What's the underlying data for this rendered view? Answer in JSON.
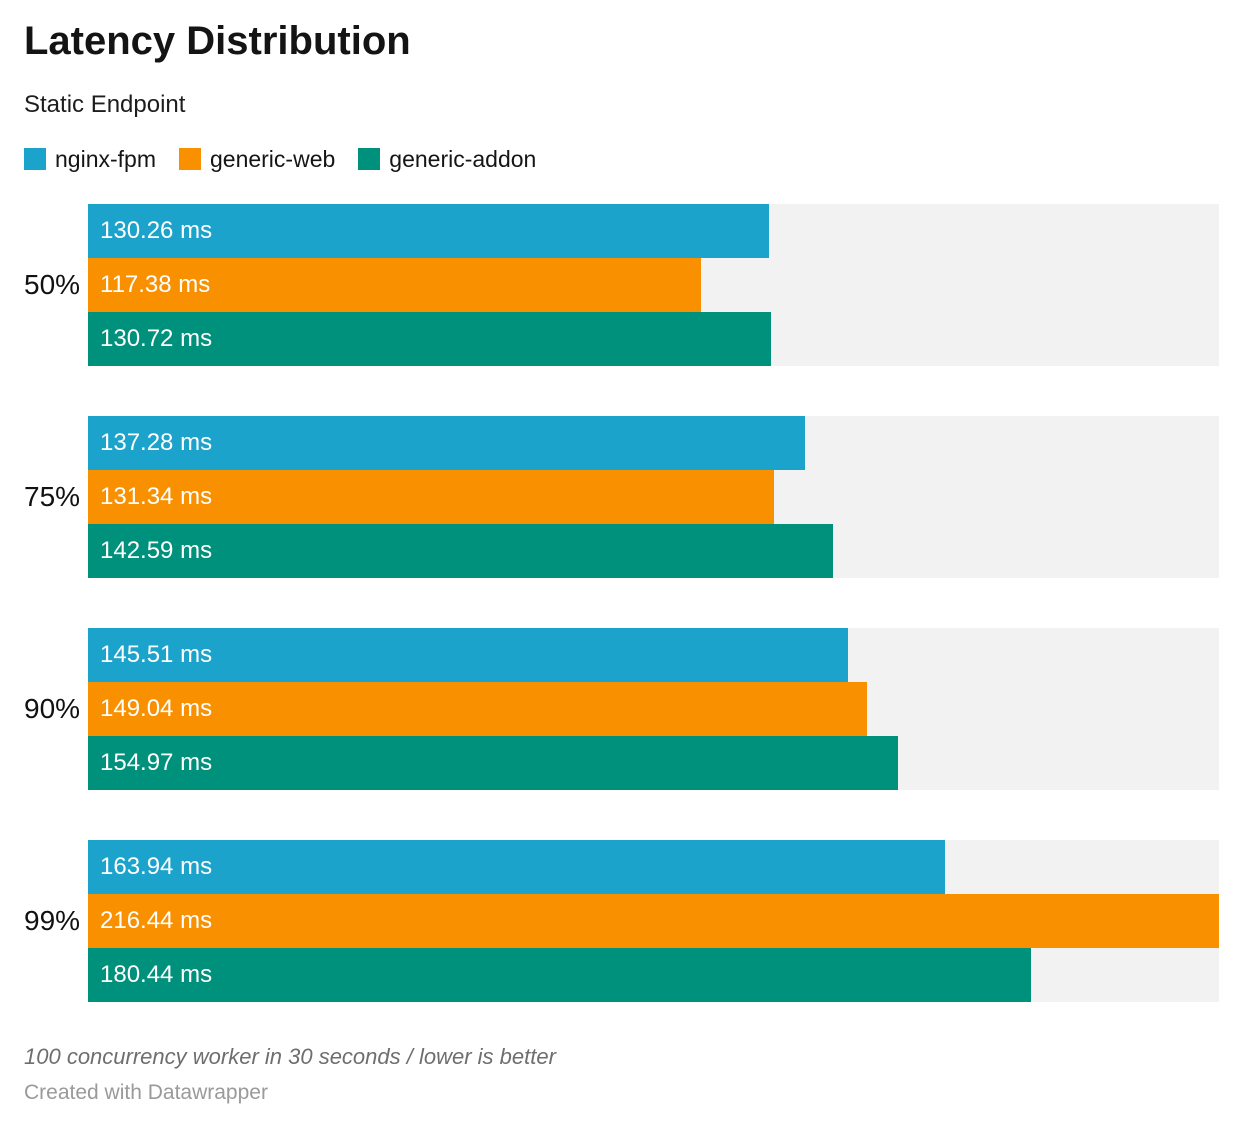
{
  "header": {
    "title": "Latency Distribution",
    "subtitle": "Static Endpoint"
  },
  "chart_data": {
    "type": "bar",
    "orientation": "horizontal",
    "title": "Latency Distribution",
    "subtitle": "Static Endpoint",
    "categories": [
      "50%",
      "75%",
      "90%",
      "99%"
    ],
    "series": [
      {
        "name": "nginx-fpm",
        "color": "#1BA3CC",
        "values": [
          130.26,
          137.28,
          145.51,
          163.94
        ]
      },
      {
        "name": "generic-web",
        "color": "#F99000",
        "values": [
          117.38,
          131.34,
          149.04,
          216.44
        ]
      },
      {
        "name": "generic-addon",
        "color": "#00917C",
        "values": [
          130.72,
          142.59,
          154.97,
          180.44
        ]
      }
    ],
    "unit": "ms",
    "value_labels": [
      [
        "130.26 ms",
        "137.28 ms",
        "145.51 ms",
        "163.94 ms"
      ],
      [
        "117.38 ms",
        "131.34 ms",
        "149.04 ms",
        "216.44 ms"
      ],
      [
        "130.72 ms",
        "142.59 ms",
        "154.97 ms",
        "180.44 ms"
      ]
    ],
    "xlim": [
      0,
      216.44
    ],
    "grid": false,
    "legend_position": "top",
    "track_color": "#F2F2F2",
    "value_label_color": "#FFFFFF"
  },
  "footer": {
    "note": "100 concurrency worker in 30 seconds / lower is better",
    "byline": "Created with Datawrapper"
  }
}
